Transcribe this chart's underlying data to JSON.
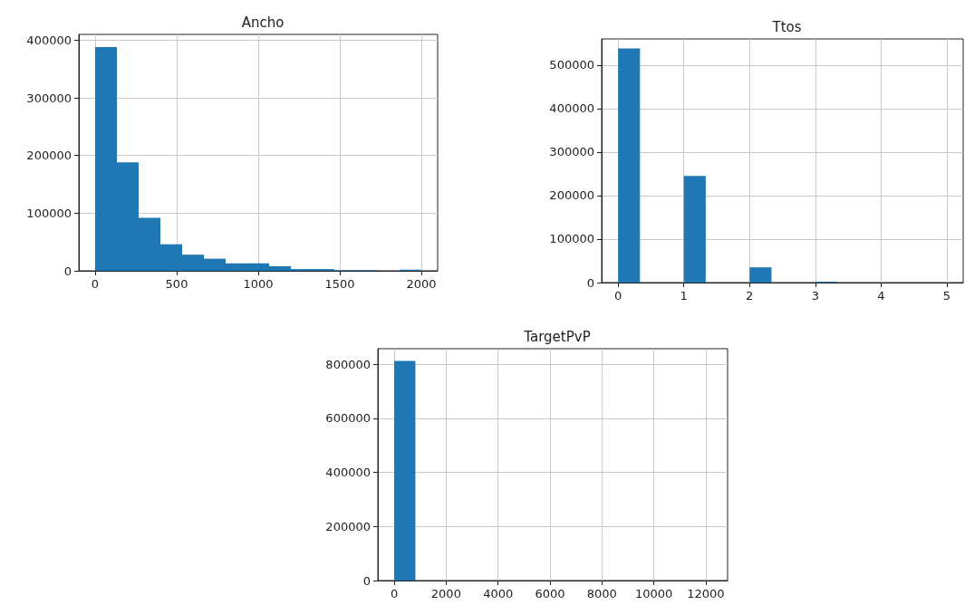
{
  "chart_data": [
    {
      "type": "histogram",
      "title": "Ancho",
      "bins": [
        0,
        133.33,
        266.67,
        400,
        533.33,
        666.67,
        800,
        933.33,
        1066.67,
        1200,
        1333.33,
        1466.67,
        1600,
        1733.33,
        1866.67,
        2000
      ],
      "values": [
        388000,
        188000,
        92000,
        46000,
        28000,
        21000,
        13000,
        13000,
        8000,
        3000,
        3000,
        1000,
        1000,
        0,
        2000
      ],
      "color": "#1f77b4",
      "xlim": [
        -100,
        2100
      ],
      "xticks": [
        0,
        500,
        1000,
        1500,
        2000
      ],
      "ylim": [
        0,
        410000
      ],
      "yticks": [
        0,
        100000,
        200000,
        300000,
        400000
      ],
      "grid": true
    },
    {
      "type": "histogram",
      "title": "Ttos",
      "bins": [
        0,
        0.3333,
        0.6667,
        1,
        1.3333,
        1.6667,
        2,
        2.3333,
        2.6667,
        3,
        3.3333,
        3.6667,
        4,
        4.3333,
        4.6667,
        5
      ],
      "values": [
        538000,
        0,
        0,
        245000,
        0,
        0,
        35000,
        0,
        0,
        2000,
        0,
        0,
        0,
        0,
        0
      ],
      "color": "#1f77b4",
      "xlim": [
        -0.25,
        5.25
      ],
      "xticks": [
        0,
        1,
        2,
        3,
        4,
        5
      ],
      "ylim": [
        0,
        560000
      ],
      "yticks": [
        0,
        100000,
        200000,
        300000,
        400000,
        500000
      ],
      "grid": true
    },
    {
      "type": "histogram",
      "title": "TargetPvP",
      "bins": [
        0,
        816.67,
        1633.33,
        2450,
        3266.67,
        4083.33,
        4900,
        5716.67,
        6533.33,
        7350,
        8166.67,
        8983.33,
        9800,
        10616.67,
        11433.33,
        12250
      ],
      "values": [
        812000,
        0,
        0,
        0,
        0,
        0,
        0,
        0,
        0,
        0,
        0,
        0,
        0,
        0,
        0
      ],
      "color": "#1f77b4",
      "xlim": [
        -630,
        12840
      ],
      "xticks": [
        0,
        2000,
        4000,
        6000,
        8000,
        10000,
        12000
      ],
      "ylim": [
        0,
        857000
      ],
      "yticks": [
        0,
        200000,
        400000,
        600000,
        800000
      ],
      "grid": true
    }
  ]
}
